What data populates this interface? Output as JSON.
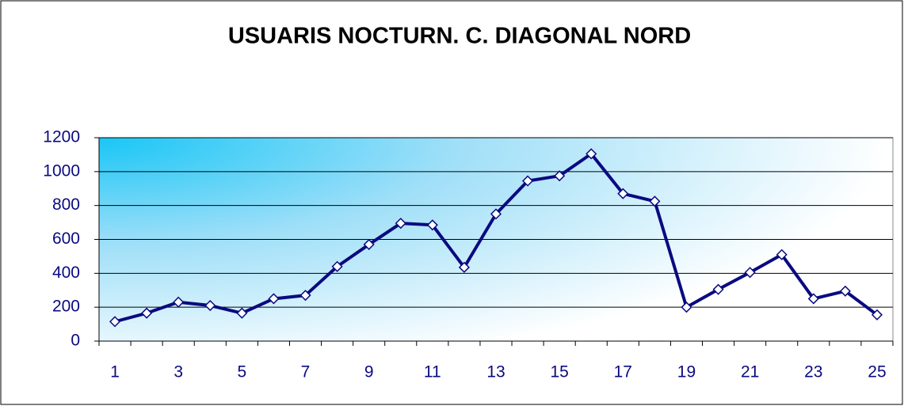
{
  "chart_data": {
    "type": "line",
    "title": "USUARIS NOCTURN. C. DIAGONAL NORD",
    "categories": [
      "1",
      null,
      "3",
      null,
      "5",
      null,
      "7",
      null,
      "9",
      null,
      "11",
      null,
      "13",
      null,
      "15",
      null,
      "17",
      null,
      "19",
      null,
      "21",
      null,
      "23",
      null,
      "25"
    ],
    "values": [
      115,
      165,
      230,
      210,
      165,
      250,
      270,
      440,
      570,
      695,
      685,
      435,
      750,
      945,
      975,
      1105,
      870,
      825,
      200,
      305,
      405,
      510,
      250,
      295,
      155
    ],
    "color": "#0a0a80",
    "ylim": [
      0,
      1200
    ],
    "yticks": [
      0,
      200,
      400,
      600,
      800,
      1000,
      1200
    ],
    "grid": true
  }
}
